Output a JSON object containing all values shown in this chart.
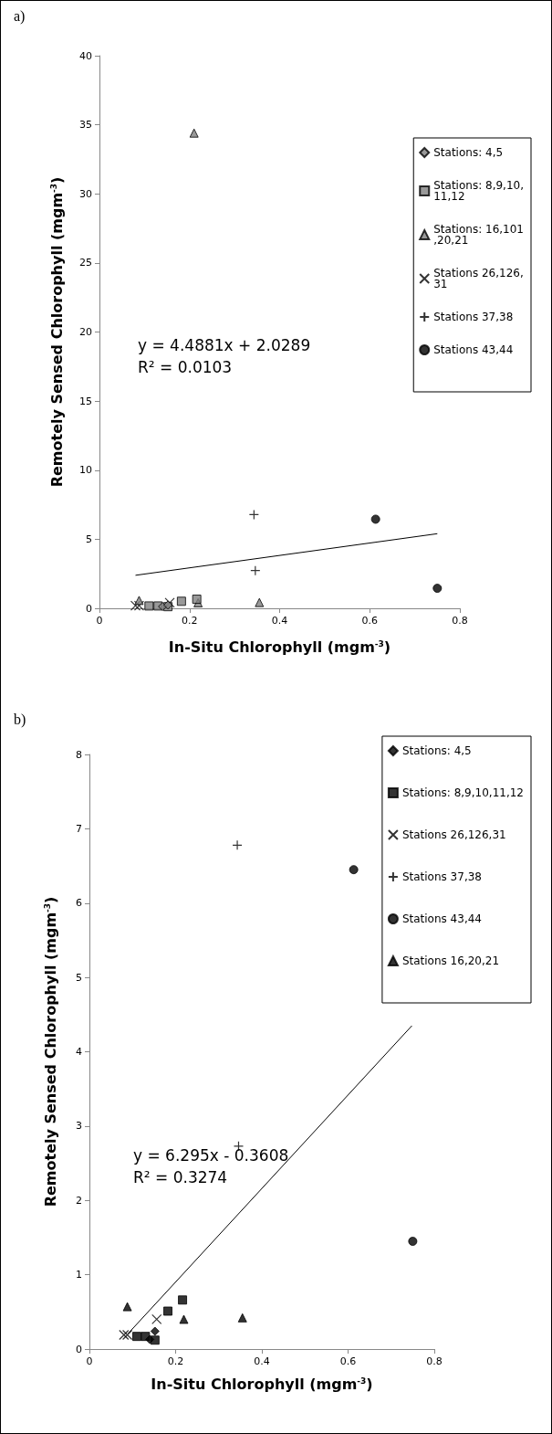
{
  "chart_data": [
    {
      "type": "scatter",
      "title": "a)",
      "xlabel": "In-Situ Chlorophyll (mgm$^{-3}$)",
      "ylabel": "Remotely Sensed Chlorophyll (mgm$^{-3}$)",
      "xlim": [
        0,
        0.8
      ],
      "xticks": [
        0,
        0.2,
        0.4,
        0.6,
        0.8
      ],
      "ylim": [
        0,
        40
      ],
      "yticks": [
        0,
        5,
        10,
        15,
        20,
        25,
        30,
        35,
        40
      ],
      "grid": false,
      "legend": "top right",
      "annotations": [
        "y = 4.4881x + 2.0289",
        "R² = 0.0103"
      ],
      "series": [
        {
          "name": "Stations: 4,5",
          "color": "#808080",
          "marker": "diamond",
          "x": [
            0.14,
            0.152
          ],
          "values": [
            0.13,
            0.24
          ]
        },
        {
          "name": "Stations: 8,9,10,11,12",
          "color": "#808080",
          "marker": "square",
          "x": [
            0.11,
            0.13,
            0.152,
            0.182,
            0.216
          ],
          "values": [
            0.17,
            0.17,
            0.12,
            0.51,
            0.66
          ]
        },
        {
          "name": "Stations: 16,101,20,21",
          "color": "#808080",
          "marker": "triangle",
          "x": [
            0.088,
            0.21,
            0.219,
            0.355
          ],
          "values": [
            0.57,
            34.4,
            0.4,
            0.42
          ]
        },
        {
          "name": "Stations 26,126,31",
          "color": "#000000",
          "marker": "x",
          "x": [
            0.08,
            0.088,
            0.156
          ],
          "values": [
            0.19,
            0.19,
            0.4
          ]
        },
        {
          "name": "Stations 37,38",
          "color": "#000000",
          "marker": "cross",
          "x": [
            0.343,
            0.346
          ],
          "values": [
            6.78,
            2.73
          ]
        },
        {
          "name": "Stations 43,44",
          "color": "#000000",
          "marker": "circle",
          "x": [
            0.613,
            0.75
          ],
          "values": [
            6.45,
            1.45
          ]
        },
        {
          "type": "line",
          "color": "#000000",
          "marker": "none",
          "x": [
            0.08,
            0.75
          ],
          "values": [
            2.39,
            5.4
          ]
        }
      ]
    },
    {
      "type": "scatter",
      "title": "b)",
      "xlabel": "In-Situ Chlorophyll (mgm$^{-3}$)",
      "ylabel": "Remotely Sensed Chlorophyll (mgm$^{-3}$)",
      "xlim": [
        0,
        0.8
      ],
      "xticks": [
        0,
        0.2,
        0.4,
        0.6,
        0.8
      ],
      "ylim": [
        0,
        8
      ],
      "yticks": [
        0,
        1,
        2,
        3,
        4,
        5,
        6,
        7,
        8
      ],
      "grid": false,
      "legend": "top right",
      "annotations": [
        "y = 6.295x - 0.3608",
        "R² = 0.3274"
      ],
      "series": [
        {
          "name": "Stations: 4,5",
          "color": "#000000",
          "marker": "diamond",
          "x": [
            0.14,
            0.152
          ],
          "values": [
            0.13,
            0.24
          ]
        },
        {
          "name": "Stations: 8,9,10,11,12",
          "color": "#000000",
          "marker": "square",
          "x": [
            0.11,
            0.13,
            0.152,
            0.182,
            0.216
          ],
          "values": [
            0.17,
            0.17,
            0.12,
            0.51,
            0.66
          ]
        },
        {
          "name": "Stations 26,126,31",
          "color": "#000000",
          "marker": "x",
          "x": [
            0.08,
            0.088,
            0.156
          ],
          "values": [
            0.19,
            0.19,
            0.4
          ]
        },
        {
          "name": "Stations 37,38",
          "color": "#000000",
          "marker": "cross",
          "x": [
            0.343,
            0.346
          ],
          "values": [
            6.78,
            2.73
          ]
        },
        {
          "name": "Stations 43,44",
          "color": "#000000",
          "marker": "circle",
          "x": [
            0.613,
            0.75
          ],
          "values": [
            6.45,
            1.45
          ]
        },
        {
          "name": "Stations 16,20,21",
          "color": "#000000",
          "marker": "triangle",
          "x": [
            0.088,
            0.219,
            0.355
          ],
          "values": [
            0.57,
            0.4,
            0.42
          ]
        },
        {
          "type": "line",
          "color": "#000000",
          "marker": "none",
          "x": [
            0.09,
            0.748
          ],
          "values": [
            0.21,
            4.35
          ]
        }
      ]
    }
  ]
}
